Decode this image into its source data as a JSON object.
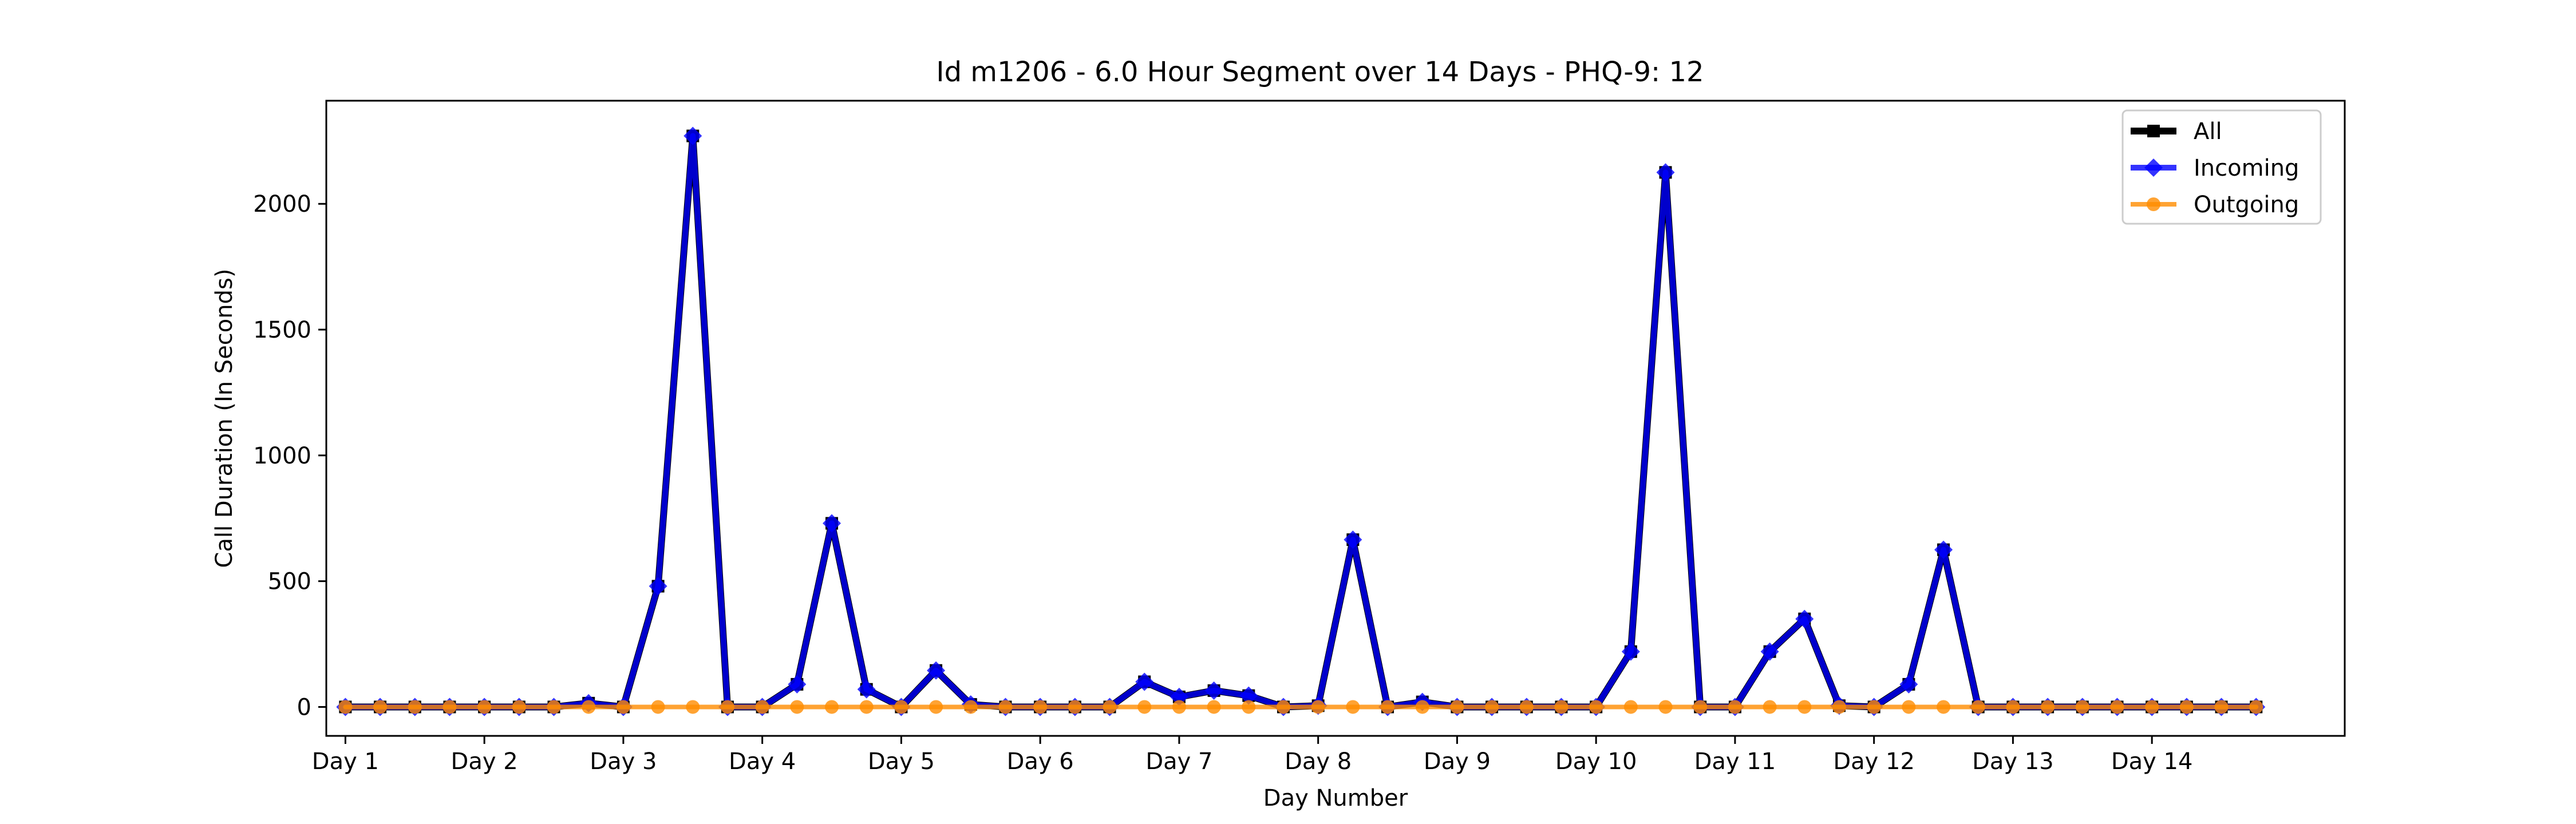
{
  "chart_data": {
    "type": "line",
    "title": "Id m1206 - 6.0 Hour Segment over 14 Days - PHQ-9: 12",
    "xlabel": "Day Number",
    "ylabel": "Call Duration (In Seconds)",
    "xlim": [
      -0.55,
      57.55
    ],
    "ylim": [
      -115,
      2410
    ],
    "yticks": [
      0,
      500,
      1000,
      1500,
      2000
    ],
    "xticks": [
      {
        "x": 0,
        "label": "Day 1"
      },
      {
        "x": 4,
        "label": "Day 2"
      },
      {
        "x": 8,
        "label": "Day 3"
      },
      {
        "x": 12,
        "label": "Day 4"
      },
      {
        "x": 16,
        "label": "Day 5"
      },
      {
        "x": 20,
        "label": "Day 6"
      },
      {
        "x": 24,
        "label": "Day 7"
      },
      {
        "x": 28,
        "label": "Day 8"
      },
      {
        "x": 32,
        "label": "Day 9"
      },
      {
        "x": 36,
        "label": "Day 10"
      },
      {
        "x": 40,
        "label": "Day 11"
      },
      {
        "x": 44,
        "label": "Day 12"
      },
      {
        "x": 48,
        "label": "Day 13"
      },
      {
        "x": 52,
        "label": "Day 14"
      }
    ],
    "legend_position": "top-right",
    "series": [
      {
        "name": "All",
        "color": "#000000",
        "marker": "square",
        "values": [
          0,
          0,
          0,
          0,
          0,
          0,
          0,
          15,
          0,
          480,
          2270,
          0,
          0,
          90,
          730,
          70,
          0,
          145,
          10,
          0,
          0,
          0,
          0,
          100,
          40,
          65,
          45,
          0,
          5,
          665,
          0,
          20,
          0,
          0,
          0,
          0,
          0,
          220,
          2125,
          0,
          0,
          220,
          350,
          5,
          0,
          90,
          625,
          0,
          0,
          0,
          0,
          0,
          0,
          0,
          0,
          0
        ]
      },
      {
        "name": "Incoming",
        "color": "#0000ff",
        "marker": "diamond",
        "values": [
          0,
          0,
          0,
          0,
          0,
          0,
          0,
          15,
          0,
          480,
          2270,
          0,
          0,
          90,
          730,
          70,
          0,
          145,
          10,
          0,
          0,
          0,
          0,
          100,
          40,
          65,
          45,
          0,
          5,
          665,
          0,
          20,
          0,
          0,
          0,
          0,
          0,
          220,
          2125,
          0,
          0,
          220,
          350,
          5,
          0,
          90,
          625,
          0,
          0,
          0,
          0,
          0,
          0,
          0,
          0,
          0
        ]
      },
      {
        "name": "Outgoing",
        "color": "#ff8c00",
        "marker": "circle",
        "values": [
          0,
          0,
          0,
          0,
          0,
          0,
          0,
          0,
          0,
          0,
          0,
          0,
          0,
          0,
          0,
          0,
          0,
          0,
          0,
          0,
          0,
          0,
          0,
          0,
          0,
          0,
          0,
          0,
          0,
          0,
          0,
          0,
          0,
          0,
          0,
          0,
          0,
          0,
          0,
          0,
          0,
          0,
          0,
          0,
          0,
          0,
          0,
          0,
          0,
          0,
          0,
          0,
          0,
          0,
          0,
          0
        ]
      }
    ]
  }
}
